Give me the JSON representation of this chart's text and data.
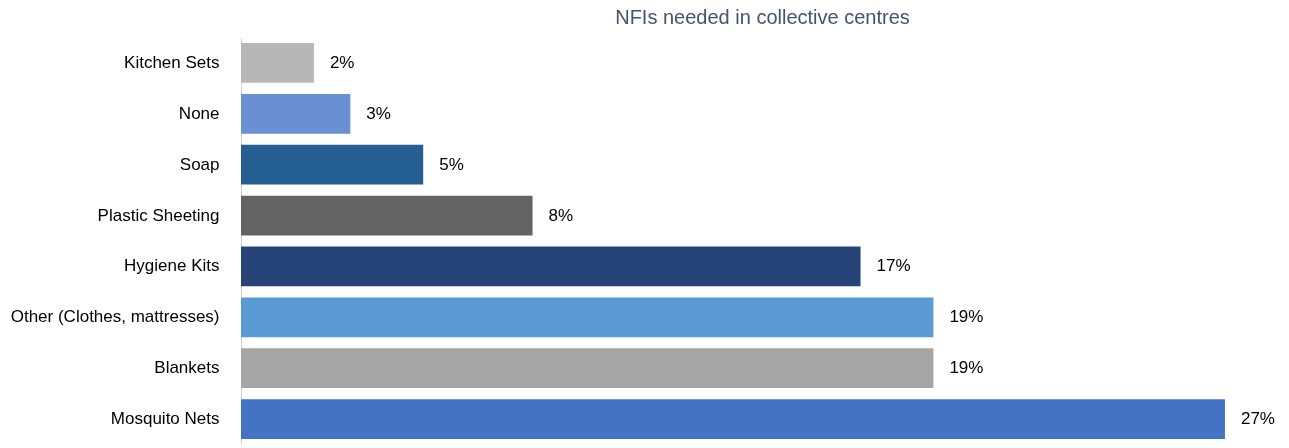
{
  "chart_data": {
    "type": "bar",
    "orientation": "horizontal",
    "title": "NFIs needed in collective centres",
    "categories": [
      "Kitchen Sets",
      "None",
      "Soap",
      "Plastic Sheeting",
      "Hygiene Kits",
      "Other (Clothes, mattresses)",
      "Blankets",
      "Mosquito Nets"
    ],
    "values": [
      2,
      3,
      5,
      8,
      17,
      19,
      19,
      27
    ],
    "colors": [
      "#b7b7b7",
      "#6a8fd3",
      "#255e91",
      "#636363",
      "#264478",
      "#5b9bd5",
      "#a5a5a5",
      "#4472c4"
    ],
    "value_labels": [
      "2%",
      "3%",
      "5%",
      "8%",
      "17%",
      "19%",
      "19%",
      "27%"
    ],
    "grid": false
  }
}
